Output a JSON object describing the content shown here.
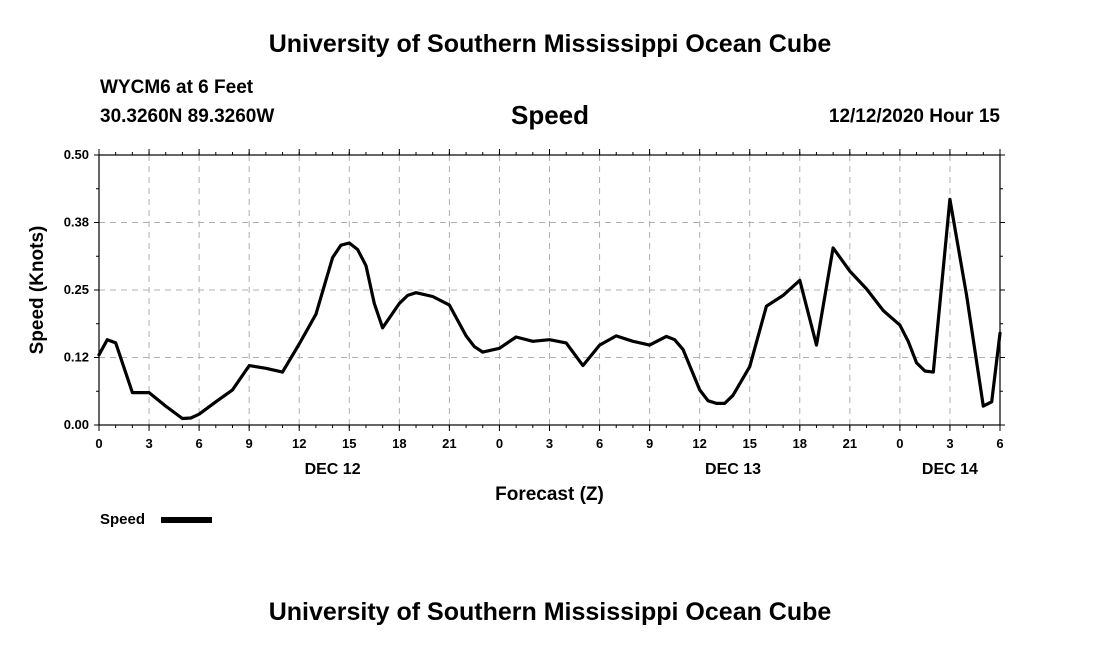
{
  "header": {
    "title": "University of Southern Mississippi Ocean Cube",
    "station": "WYCM6 at 6 Feet",
    "coords": "30.3260N 89.3260W",
    "parameter": "Speed",
    "run_time": "12/12/2020 Hour 15"
  },
  "footer": {
    "title": "University of Southern Mississippi Ocean Cube"
  },
  "colors": {
    "line": "#000000",
    "grid": "#b0b0b0"
  },
  "chart_data": {
    "type": "line",
    "title": "Speed",
    "xlabel": "Forecast (Z)",
    "ylabel": "Speed (Knots)",
    "ylim": [
      0,
      0.5
    ],
    "xlim": [
      0,
      54
    ],
    "y_ticks": [
      {
        "value": 0,
        "label": "0.00"
      },
      {
        "value": 0.125,
        "label": "0.12"
      },
      {
        "value": 0.25,
        "label": "0.25"
      },
      {
        "value": 0.375,
        "label": "0.38"
      },
      {
        "value": 0.5,
        "label": "0.50"
      }
    ],
    "x_ticks": [
      {
        "value": 0,
        "label": "0"
      },
      {
        "value": 3,
        "label": "3"
      },
      {
        "value": 6,
        "label": "6"
      },
      {
        "value": 9,
        "label": "9"
      },
      {
        "value": 12,
        "label": "12"
      },
      {
        "value": 15,
        "label": "15"
      },
      {
        "value": 18,
        "label": "18"
      },
      {
        "value": 21,
        "label": "21"
      },
      {
        "value": 24,
        "label": "0"
      },
      {
        "value": 27,
        "label": "3"
      },
      {
        "value": 30,
        "label": "6"
      },
      {
        "value": 33,
        "label": "9"
      },
      {
        "value": 36,
        "label": "12"
      },
      {
        "value": 39,
        "label": "15"
      },
      {
        "value": 42,
        "label": "18"
      },
      {
        "value": 45,
        "label": "21"
      },
      {
        "value": 48,
        "label": "0"
      },
      {
        "value": 51,
        "label": "3"
      },
      {
        "value": 54,
        "label": "6"
      }
    ],
    "date_labels": [
      {
        "value": 14,
        "label": "DEC 12"
      },
      {
        "value": 38,
        "label": "DEC 13"
      },
      {
        "value": 51,
        "label": "DEC 14"
      }
    ],
    "grid": true,
    "legend": {
      "label": "Speed",
      "position": "bottom-left"
    },
    "series": [
      {
        "name": "Speed",
        "x": [
          0,
          0.5,
          1,
          2,
          3,
          4,
          5,
          5.5,
          6,
          7,
          8,
          9,
          10,
          11,
          12,
          13,
          14,
          14.5,
          15,
          15.5,
          16,
          16.5,
          17,
          18,
          18.5,
          19,
          20,
          21,
          22,
          22.5,
          23,
          24,
          25,
          26,
          27,
          28,
          29,
          30,
          31,
          32,
          33,
          34,
          34.5,
          35,
          36,
          36.5,
          37,
          37.5,
          38,
          39,
          40,
          41,
          42,
          43,
          44,
          45,
          46,
          47,
          48,
          48.5,
          49,
          49.5,
          50,
          51,
          52,
          53,
          53.5,
          54
        ],
        "y": [
          0.13,
          0.158,
          0.152,
          0.06,
          0.06,
          0.035,
          0.012,
          0.013,
          0.02,
          0.043,
          0.065,
          0.11,
          0.105,
          0.098,
          0.15,
          0.205,
          0.31,
          0.333,
          0.337,
          0.325,
          0.295,
          0.225,
          0.18,
          0.225,
          0.24,
          0.245,
          0.238,
          0.222,
          0.165,
          0.145,
          0.135,
          0.142,
          0.163,
          0.155,
          0.158,
          0.152,
          0.11,
          0.148,
          0.165,
          0.155,
          0.148,
          0.164,
          0.158,
          0.14,
          0.065,
          0.045,
          0.04,
          0.04,
          0.055,
          0.108,
          0.22,
          0.24,
          0.268,
          0.148,
          0.328,
          0.285,
          0.252,
          0.212,
          0.185,
          0.155,
          0.115,
          0.1,
          0.098,
          0.418,
          0.24,
          0.035,
          0.043,
          0.17
        ]
      }
    ]
  }
}
